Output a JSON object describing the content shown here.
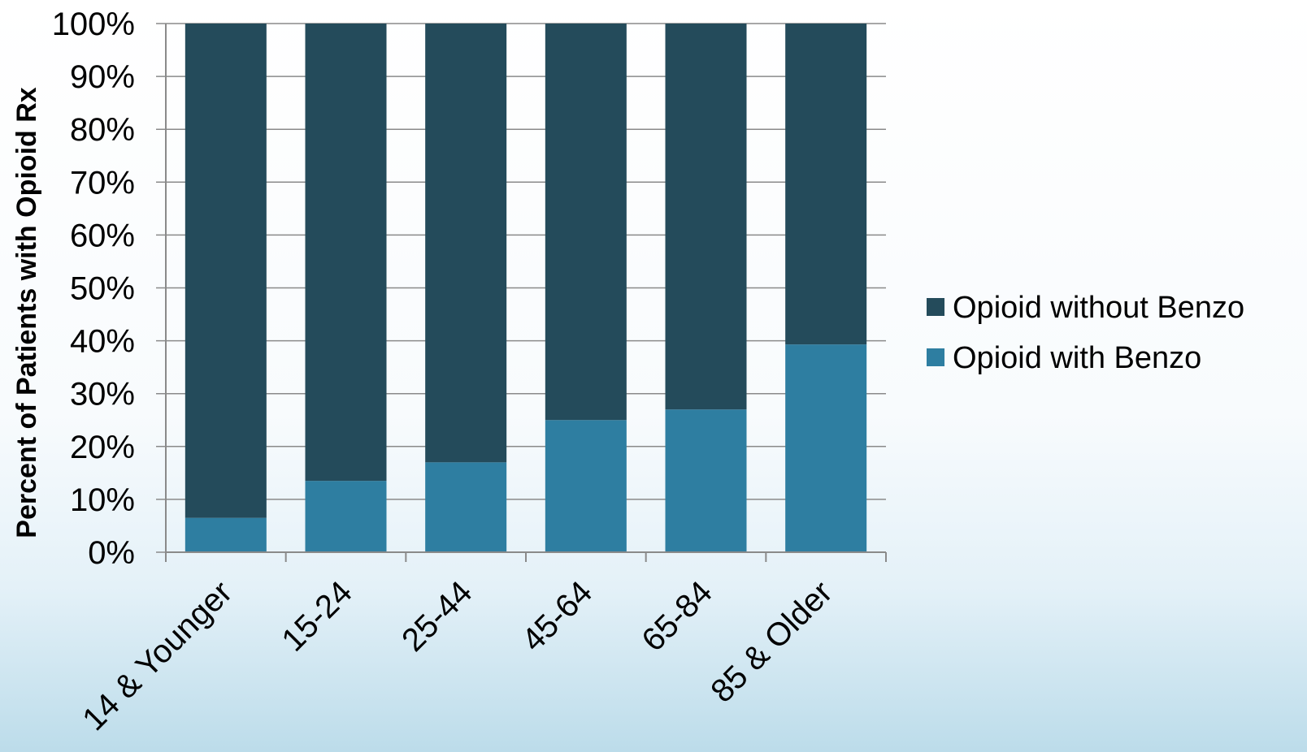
{
  "chart_data": {
    "type": "bar",
    "stacked": true,
    "percent_stacked": true,
    "categories": [
      "14 & Younger",
      "15-24",
      "25-44",
      "45-64",
      "65-84",
      "85 & Older"
    ],
    "series": [
      {
        "name": "Opioid with Benzo",
        "color": "#2e7ea1",
        "values": [
          6.5,
          13.5,
          17,
          25,
          27,
          39.3
        ]
      },
      {
        "name": "Opioid without Benzo",
        "color": "#244b5b",
        "values": [
          93.5,
          86.5,
          83,
          75,
          73,
          60.7
        ]
      }
    ],
    "ylabel": "Percent of Patients with Opioid Rx",
    "xlabel": "",
    "ylim": [
      0,
      100
    ],
    "yticks": [
      "0%",
      "10%",
      "20%",
      "30%",
      "40%",
      "50%",
      "60%",
      "70%",
      "80%",
      "90%",
      "100%"
    ],
    "grid": true,
    "legend": {
      "position": "right",
      "entries": [
        "Opioid without Benzo",
        "Opioid with Benzo"
      ]
    }
  }
}
